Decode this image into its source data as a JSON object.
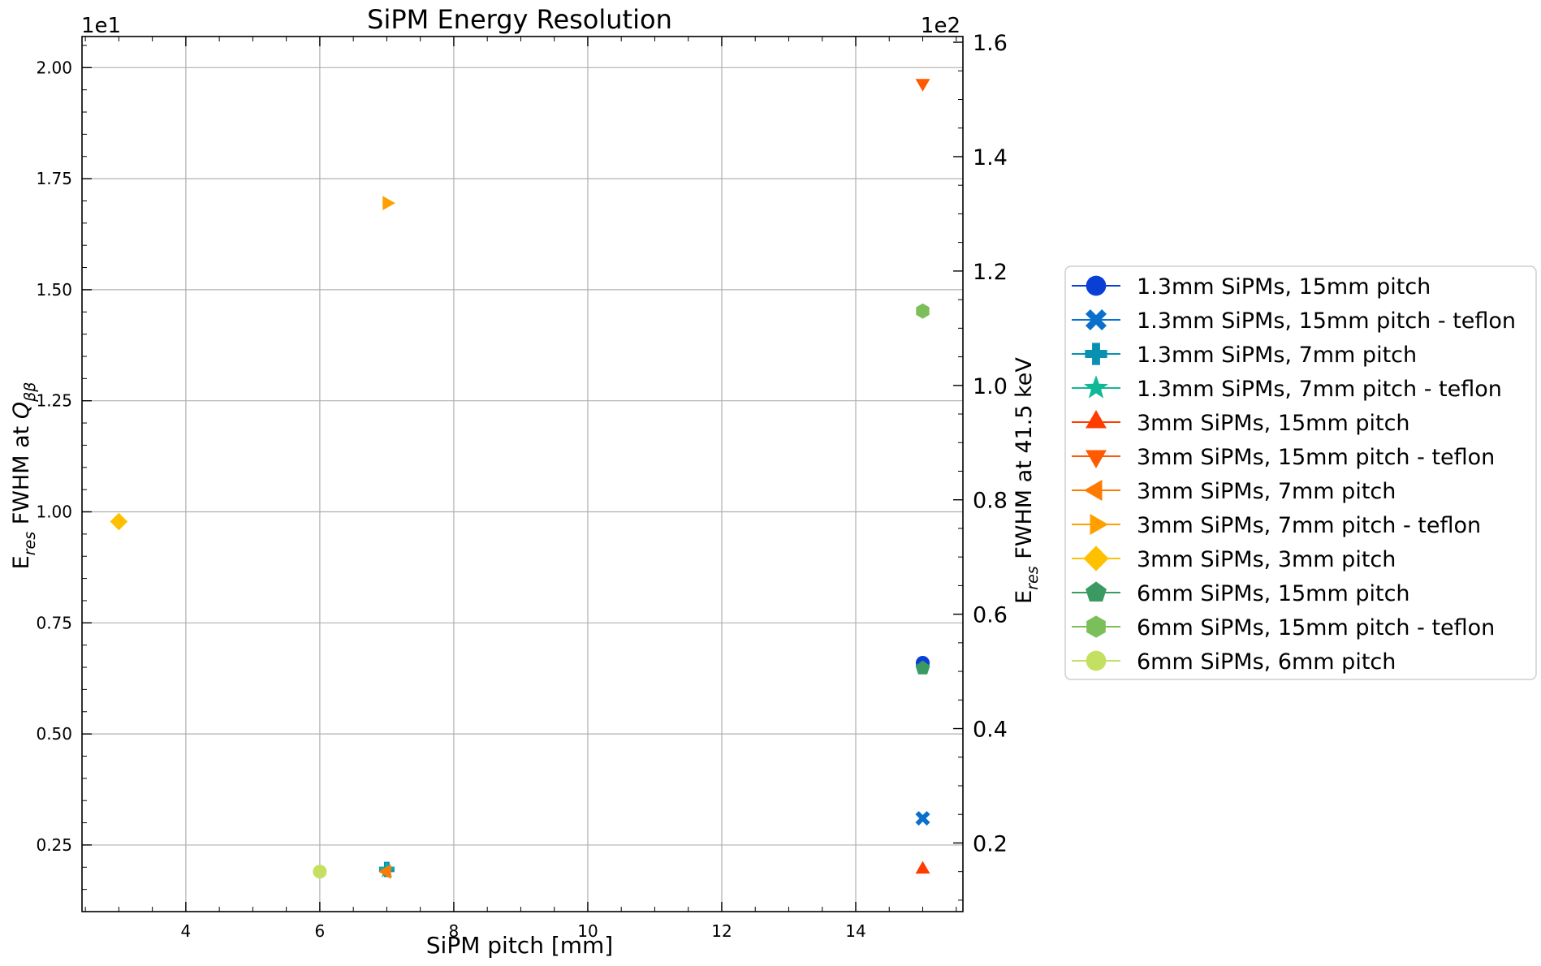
{
  "chart_data": {
    "type": "scatter",
    "title": "SiPM Energy Resolution",
    "xlabel": "SiPM pitch [mm]",
    "ylabel_left": "E_res FWHM at Q_ββ",
    "ylabel_right": "E_res FWHM at 41.5 keV",
    "left_offset_text": "1e1",
    "right_offset_text": "1e2",
    "xlim": [
      2.45,
      15.6
    ],
    "ylim_left": [
      0.1,
      2.07
    ],
    "ylim_right": [
      0.08,
      1.61
    ],
    "x_ticks": [
      4,
      6,
      8,
      10,
      12,
      14
    ],
    "x_tick_labels": [
      "4",
      "6",
      "8",
      "10",
      "12",
      "14"
    ],
    "y_left_ticks": [
      0.25,
      0.5,
      0.75,
      1.0,
      1.25,
      1.5,
      1.75,
      2.0
    ],
    "y_left_tick_labels": [
      "0.25",
      "0.50",
      "0.75",
      "1.00",
      "1.25",
      "1.50",
      "1.75",
      "2.00"
    ],
    "y_right_ticks": [
      0.2,
      0.4,
      0.6,
      0.8,
      1.0,
      1.2,
      1.4,
      1.6
    ],
    "y_right_tick_labels": [
      "0.2",
      "0.4",
      "0.6",
      "0.8",
      "1.0",
      "1.2",
      "1.4",
      "1.6"
    ],
    "grid": true,
    "legend_position": "right, outside plot",
    "series": [
      {
        "name": "1.3mm SiPMs, 15mm pitch",
        "color": "#0a3fd6",
        "marker": "circle",
        "x": [
          15
        ],
        "y": [
          0.66
        ]
      },
      {
        "name": "1.3mm SiPMs, 15mm pitch - teflon",
        "color": "#0b6fcc",
        "marker": "x",
        "x": [
          15
        ],
        "y": [
          0.31
        ]
      },
      {
        "name": "1.3mm SiPMs, 7mm pitch",
        "color": "#0a90b0",
        "marker": "plus",
        "x": [
          7
        ],
        "y": [
          0.195
        ]
      },
      {
        "name": "1.3mm SiPMs, 7mm pitch - teflon",
        "color": "#10b896",
        "marker": "star",
        "x": [
          7
        ],
        "y": [
          0.193
        ]
      },
      {
        "name": "3mm SiPMs, 15mm pitch",
        "color": "#ff3c00",
        "marker": "triangle-up",
        "x": [
          15
        ],
        "y": [
          0.195
        ]
      },
      {
        "name": "3mm SiPMs, 15mm pitch - teflon",
        "color": "#ff5a00",
        "marker": "triangle-down",
        "x": [
          15
        ],
        "y": [
          1.965
        ]
      },
      {
        "name": "3mm SiPMs, 7mm pitch",
        "color": "#ff7a00",
        "marker": "triangle-left",
        "x": [
          7
        ],
        "y": [
          0.19
        ]
      },
      {
        "name": "3mm SiPMs, 7mm pitch - teflon",
        "color": "#ffa000",
        "marker": "triangle-right",
        "x": [
          7
        ],
        "y": [
          1.695
        ]
      },
      {
        "name": "3mm SiPMs, 3mm pitch",
        "color": "#ffc000",
        "marker": "diamond",
        "x": [
          3
        ],
        "y": [
          0.978
        ]
      },
      {
        "name": "6mm SiPMs, 15mm pitch",
        "color": "#3a9a62",
        "marker": "pentagon",
        "x": [
          15
        ],
        "y": [
          0.648
        ]
      },
      {
        "name": "6mm SiPMs, 15mm pitch - teflon",
        "color": "#7abf5a",
        "marker": "hexagon",
        "x": [
          15
        ],
        "y": [
          1.452
        ]
      },
      {
        "name": "6mm SiPMs, 6mm pitch",
        "color": "#c4e060",
        "marker": "circle",
        "x": [
          6
        ],
        "y": [
          0.19
        ]
      }
    ]
  }
}
